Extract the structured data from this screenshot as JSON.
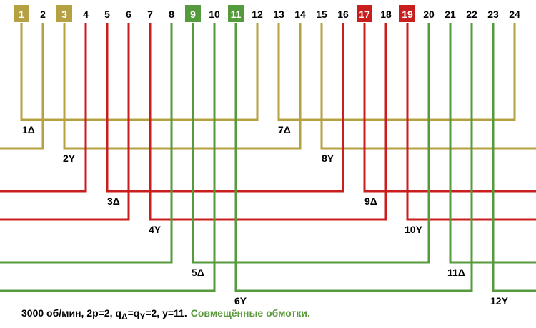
{
  "slots": [
    "1",
    "2",
    "3",
    "4",
    "5",
    "6",
    "7",
    "8",
    "9",
    "10",
    "11",
    "12",
    "13",
    "14",
    "15",
    "16",
    "17",
    "18",
    "19",
    "20",
    "21",
    "22",
    "23",
    "24"
  ],
  "coils": [
    "1Δ",
    "2Y",
    "3Δ",
    "4Y",
    "5Δ",
    "6Y",
    "7Δ",
    "8Y",
    "9Δ",
    "10Y",
    "11Δ",
    "12Y"
  ],
  "caption": {
    "part1": "3000 об/мин, 2р=2, q",
    "sub1": "Δ",
    "part2": "=q",
    "sub2": "Y",
    "part3": "=2, y=11.",
    "highlight": "Совмещённые обмотки."
  }
}
